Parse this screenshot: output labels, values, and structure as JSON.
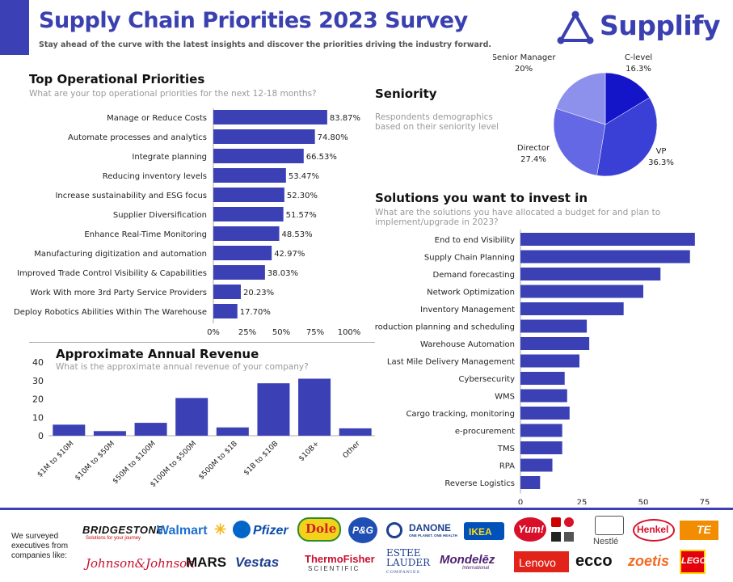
{
  "header": {
    "title": "Supply Chain Priorities 2023 Survey",
    "subtitle": "Stay ahead of the curve with the latest insights and discover the priorities driving the industry forward.",
    "logo_text": "Supplify",
    "accent_color": "#3b41b5"
  },
  "sections": {
    "priorities_title": "Top Operational Priorities",
    "priorities_sub": "What are your top operational priorities for the next 12-18 months?",
    "seniority_title": "Seniority",
    "seniority_sub": "Respondents demographics based on their seniority level",
    "solutions_title": "Solutions you want to invest in",
    "solutions_sub": "What are the solutions you have allocated a budget for and plan to implement/upgrade in 2023?",
    "revenue_title": "Approximate Annual Revenue",
    "revenue_sub": "What is the approximate annual revenue of your company?"
  },
  "footer": {
    "surveyed_text": "We surveyed executives from companies like:",
    "brands": [
      "BRIDGESTONE",
      "Solutions for your journey",
      "Walmart",
      "Pfizer",
      "Dole",
      "P&G",
      "DANONE",
      "ONE PLANET. ONE HEALTH",
      "IKEA",
      "Yum!",
      "Nestlé",
      "Henkel",
      "TE",
      "Johnson&Johnson",
      "MARS",
      "Vestas",
      "ThermoFisher",
      "SCIENTIFIC",
      "ESTEE",
      "LAUDER",
      "COMPANIES",
      "Mondelēz",
      "International",
      "Lenovo",
      "ecco",
      "zoetis",
      "LEGO"
    ]
  },
  "chart_data": [
    {
      "type": "bar",
      "orientation": "horizontal",
      "categories": [
        "Manage or Reduce Costs",
        "Automate processes and analytics",
        "Integrate planning",
        "Reducing inventory levels",
        "Increase sustainability and ESG focus",
        "Supplier Diversification",
        "Enhance Real-Time Monitoring",
        "Manufacturing digitization and automation",
        "Improved Trade Control Visibility & Capabilities",
        "Work With more 3rd Party Service Providers",
        "Deploy Robotics Abilities Within The Warehouse"
      ],
      "values": [
        83.87,
        74.8,
        66.53,
        53.47,
        52.3,
        51.57,
        48.53,
        42.97,
        38.03,
        20.23,
        17.7
      ],
      "value_labels": [
        "83.87%",
        "74.80%",
        "66.53%",
        "53.47%",
        "52.30%",
        "51.57%",
        "48.53%",
        "42.97%",
        "38.03%",
        "20.23%",
        "17.70%"
      ],
      "xlim": [
        0,
        100
      ],
      "xticks": [
        "0%",
        "25%",
        "50%",
        "75%",
        "100%"
      ],
      "color": "#3b41b5"
    },
    {
      "type": "pie",
      "labels": [
        "C-level",
        "VP",
        "Director",
        "Senior Manager"
      ],
      "values": [
        16.3,
        36.3,
        27.4,
        20
      ],
      "value_labels": [
        "16.3%",
        "36.3%",
        "27.4%",
        "20%"
      ],
      "colors": [
        "#1414c8",
        "#3a3fd6",
        "#6468e4",
        "#8e91ec"
      ]
    },
    {
      "type": "bar",
      "orientation": "horizontal",
      "categories": [
        "End to end Visibility",
        "Supply Chain Planning",
        "Demand forecasting",
        "Network Optimization",
        "Inventory Management",
        "Production planning and scheduling",
        "Warehouse Automation",
        "Last Mile Delivery Management",
        "Cybersecurity",
        "WMS",
        "Cargo tracking, monitoring",
        "e-procurement",
        "TMS",
        "RPA",
        "Reverse Logistics"
      ],
      "values": [
        71,
        69,
        57,
        50,
        42,
        27,
        28,
        24,
        18,
        19,
        20,
        17,
        17,
        13,
        8
      ],
      "xlim": [
        0,
        80
      ],
      "xticks": [
        "0",
        "25",
        "50",
        "75"
      ],
      "color": "#3b41b5"
    },
    {
      "type": "bar",
      "categories": [
        "$1M to $10M",
        "$10M to $50M",
        "$50M to $100M",
        "$100M to $500M",
        "$500M to $1B",
        "$1B to $10B",
        "$10B+",
        "Other"
      ],
      "values": [
        6,
        2.5,
        7,
        20.5,
        4.5,
        28.5,
        31,
        4
      ],
      "ylim": [
        0,
        40
      ],
      "yticks": [
        "0",
        "10",
        "20",
        "30",
        "40"
      ],
      "color": "#3b41b5"
    }
  ]
}
